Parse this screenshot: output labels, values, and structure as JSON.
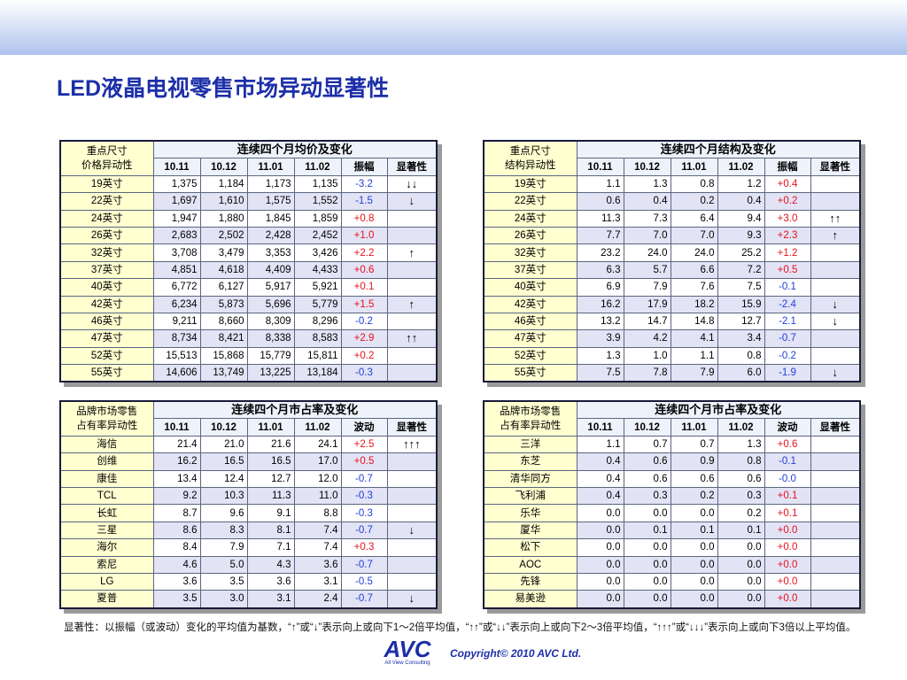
{
  "title": "LED液晶电视零售市场异动显著性",
  "tables": [
    {
      "corner": [
        "重点尺寸",
        "价格异动性"
      ],
      "title": "连续四个月均价及变化",
      "columns": [
        "10.11",
        "10.12",
        "11.01",
        "11.02",
        "振幅",
        "显著性"
      ],
      "rows": [
        {
          "label": "19英寸",
          "values": [
            "1,375",
            "1,184",
            "1,173",
            "1,135"
          ],
          "change": "-3.2",
          "sig": "↓↓"
        },
        {
          "label": "22英寸",
          "values": [
            "1,697",
            "1,610",
            "1,575",
            "1,552"
          ],
          "change": "-1.5",
          "sig": "↓"
        },
        {
          "label": "24英寸",
          "values": [
            "1,947",
            "1,880",
            "1,845",
            "1,859"
          ],
          "change": "+0.8"
        },
        {
          "label": "26英寸",
          "values": [
            "2,683",
            "2,502",
            "2,428",
            "2,452"
          ],
          "change": "+1.0"
        },
        {
          "label": "32英寸",
          "values": [
            "3,708",
            "3,479",
            "3,353",
            "3,426"
          ],
          "change": "+2.2",
          "sig": "↑"
        },
        {
          "label": "37英寸",
          "values": [
            "4,851",
            "4,618",
            "4,409",
            "4,433"
          ],
          "change": "+0.6"
        },
        {
          "label": "40英寸",
          "values": [
            "6,772",
            "6,127",
            "5,917",
            "5,921"
          ],
          "change": "+0.1"
        },
        {
          "label": "42英寸",
          "values": [
            "6,234",
            "5,873",
            "5,696",
            "5,779"
          ],
          "change": "+1.5",
          "sig": "↑"
        },
        {
          "label": "46英寸",
          "values": [
            "9,211",
            "8,660",
            "8,309",
            "8,296"
          ],
          "change": "-0.2"
        },
        {
          "label": "47英寸",
          "values": [
            "8,734",
            "8,421",
            "8,338",
            "8,583"
          ],
          "change": "+2.9",
          "sig": "↑↑"
        },
        {
          "label": "52英寸",
          "values": [
            "15,513",
            "15,868",
            "15,779",
            "15,811"
          ],
          "change": "+0.2"
        },
        {
          "label": "55英寸",
          "values": [
            "14,606",
            "13,749",
            "13,225",
            "13,184"
          ],
          "change": "-0.3"
        }
      ]
    },
    {
      "corner": [
        "重点尺寸",
        "结构异动性"
      ],
      "title": "连续四个月结构及变化",
      "columns": [
        "10.11",
        "10.12",
        "11.01",
        "11.02",
        "振幅",
        "显著性"
      ],
      "rows": [
        {
          "label": "19英寸",
          "values": [
            "1.1",
            "1.3",
            "0.8",
            "1.2"
          ],
          "change": "+0.4"
        },
        {
          "label": "22英寸",
          "values": [
            "0.6",
            "0.4",
            "0.2",
            "0.4"
          ],
          "change": "+0.2"
        },
        {
          "label": "24英寸",
          "values": [
            "11.3",
            "7.3",
            "6.4",
            "9.4"
          ],
          "change": "+3.0",
          "sig": "↑↑"
        },
        {
          "label": "26英寸",
          "values": [
            "7.7",
            "7.0",
            "7.0",
            "9.3"
          ],
          "change": "+2.3",
          "sig": "↑"
        },
        {
          "label": "32英寸",
          "values": [
            "23.2",
            "24.0",
            "24.0",
            "25.2"
          ],
          "change": "+1.2"
        },
        {
          "label": "37英寸",
          "values": [
            "6.3",
            "5.7",
            "6.6",
            "7.2"
          ],
          "change": "+0.5"
        },
        {
          "label": "40英寸",
          "values": [
            "6.9",
            "7.9",
            "7.6",
            "7.5"
          ],
          "change": "-0.1"
        },
        {
          "label": "42英寸",
          "values": [
            "16.2",
            "17.9",
            "18.2",
            "15.9"
          ],
          "change": "-2.4",
          "sig": "↓"
        },
        {
          "label": "46英寸",
          "values": [
            "13.2",
            "14.7",
            "14.8",
            "12.7"
          ],
          "change": "-2.1",
          "sig": "↓"
        },
        {
          "label": "47英寸",
          "values": [
            "3.9",
            "4.2",
            "4.1",
            "3.4"
          ],
          "change": "-0.7"
        },
        {
          "label": "52英寸",
          "values": [
            "1.3",
            "1.0",
            "1.1",
            "0.8"
          ],
          "change": "-0.2"
        },
        {
          "label": "55英寸",
          "values": [
            "7.5",
            "7.8",
            "7.9",
            "6.0"
          ],
          "change": "-1.9",
          "sig": "↓"
        }
      ]
    },
    {
      "corner": [
        "品牌市场零售",
        "占有率异动性"
      ],
      "title": "连续四个月市占率及变化",
      "columns": [
        "10.11",
        "10.12",
        "11.01",
        "11.02",
        "波动",
        "显著性"
      ],
      "rows": [
        {
          "label": "海信",
          "values": [
            "21.4",
            "21.0",
            "21.6",
            "24.1"
          ],
          "change": "+2.5",
          "sig": "↑↑↑"
        },
        {
          "label": "创维",
          "values": [
            "16.2",
            "16.5",
            "16.5",
            "17.0"
          ],
          "change": "+0.5"
        },
        {
          "label": "康佳",
          "values": [
            "13.4",
            "12.4",
            "12.7",
            "12.0"
          ],
          "change": "-0.7"
        },
        {
          "label": "TCL",
          "values": [
            "9.2",
            "10.3",
            "11.3",
            "11.0"
          ],
          "change": "-0.3"
        },
        {
          "label": "长虹",
          "values": [
            "8.7",
            "9.6",
            "9.1",
            "8.8"
          ],
          "change": "-0.3"
        },
        {
          "label": "三星",
          "values": [
            "8.6",
            "8.3",
            "8.1",
            "7.4"
          ],
          "change": "-0.7",
          "sig": "↓"
        },
        {
          "label": "海尔",
          "values": [
            "8.4",
            "7.9",
            "7.1",
            "7.4"
          ],
          "change": "+0.3"
        },
        {
          "label": "索尼",
          "values": [
            "4.6",
            "5.0",
            "4.3",
            "3.6"
          ],
          "change": "-0.7"
        },
        {
          "label": "LG",
          "values": [
            "3.6",
            "3.5",
            "3.6",
            "3.1"
          ],
          "change": "-0.5"
        },
        {
          "label": "夏普",
          "values": [
            "3.5",
            "3.0",
            "3.1",
            "2.4"
          ],
          "change": "-0.7",
          "sig": "↓"
        }
      ]
    },
    {
      "corner": [
        "品牌市场零售",
        "占有率异动性"
      ],
      "title": "连续四个月市占率及变化",
      "columns": [
        "10.11",
        "10.12",
        "11.01",
        "11.02",
        "波动",
        "显著性"
      ],
      "rows": [
        {
          "label": "三洋",
          "values": [
            "1.1",
            "0.7",
            "0.7",
            "1.3"
          ],
          "change": "+0.6"
        },
        {
          "label": "东芝",
          "values": [
            "0.4",
            "0.6",
            "0.9",
            "0.8"
          ],
          "change": "-0.1"
        },
        {
          "label": "清华同方",
          "values": [
            "0.4",
            "0.6",
            "0.6",
            "0.6"
          ],
          "change": "-0.0"
        },
        {
          "label": "飞利浦",
          "values": [
            "0.4",
            "0.3",
            "0.2",
            "0.3"
          ],
          "change": "+0.1"
        },
        {
          "label": "乐华",
          "values": [
            "0.0",
            "0.0",
            "0.0",
            "0.2"
          ],
          "change": "+0.1"
        },
        {
          "label": "厦华",
          "values": [
            "0.0",
            "0.1",
            "0.1",
            "0.1"
          ],
          "change": "+0.0"
        },
        {
          "label": "松下",
          "values": [
            "0.0",
            "0.0",
            "0.0",
            "0.0"
          ],
          "change": "+0.0"
        },
        {
          "label": "AOC",
          "values": [
            "0.0",
            "0.0",
            "0.0",
            "0.0"
          ],
          "change": "+0.0"
        },
        {
          "label": "先锋",
          "values": [
            "0.0",
            "0.0",
            "0.0",
            "0.0"
          ],
          "change": "+0.0"
        },
        {
          "label": "易美逊",
          "values": [
            "0.0",
            "0.0",
            "0.0",
            "0.0"
          ],
          "change": "+0.0"
        }
      ]
    }
  ],
  "footnote": "显著性：以振幅（或波动）变化的平均值为基数，“↑”或“↓”表示向上或向下1～2倍平均值，“↑↑”或“↓↓”表示向上或向下2～3倍平均值，“↑↑↑”或“↓↓↓”表示向上或向下3倍以上平均值。",
  "logo": {
    "name": "AVC",
    "tagline": "All View Consulting"
  },
  "copyright": "Copyright© 2010 AVC Ltd."
}
